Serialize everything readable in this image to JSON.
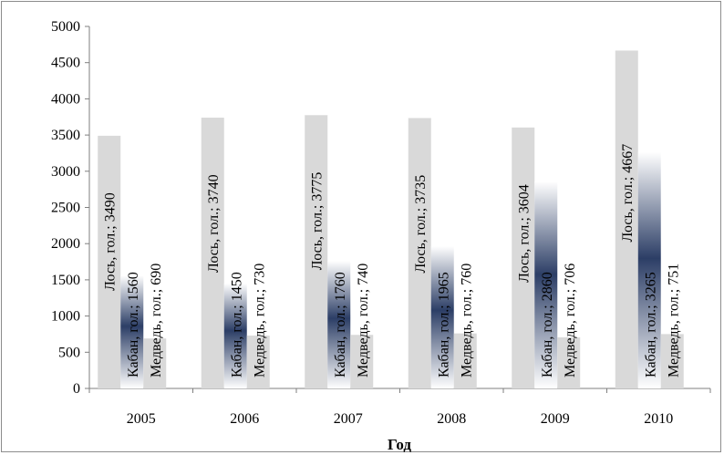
{
  "chart_data": {
    "type": "bar",
    "categories": [
      "2005",
      "2006",
      "2007",
      "2008",
      "2009",
      "2010"
    ],
    "series": [
      {
        "name": "Лось, гол.",
        "values": [
          3490,
          3740,
          3775,
          3735,
          3604,
          4667
        ],
        "labels": [
          "Лось, гол.; 3490",
          "Лось, гол.; 3740",
          "Лось, гол.; 3775",
          "Лось, гол.; 3735",
          "Лось, гол.; 3604",
          "Лось, гол.; 4667"
        ]
      },
      {
        "name": "Кабан, гол.",
        "values": [
          1560,
          1450,
          1760,
          1965,
          2860,
          3265
        ],
        "labels": [
          "Кабан, гол.; 1560",
          "Кабан, гол.; 1450",
          "Кабан, гол.; 1760",
          "Кабан, гол.; 1965",
          "Кабан, гол.; 2860",
          "Кабан, гол.; 3265"
        ]
      },
      {
        "name": "Медведь, гол.",
        "values": [
          690,
          730,
          740,
          760,
          706,
          751
        ],
        "labels": [
          "Медведь, гол.; 690",
          "Медведь, гол.; 730",
          "Медведь, гол.; 740",
          "Медведь, гол.; 760",
          "Медведь, гол.; 706",
          "Медведь, гол.; 751"
        ]
      }
    ],
    "xlabel": "Год",
    "ylabel": "",
    "ylim": [
      0,
      5000
    ],
    "yticks": [
      "0",
      "500",
      "1000",
      "1500",
      "2000",
      "2500",
      "3000",
      "3500",
      "4000",
      "4500",
      "5000"
    ],
    "grid": false,
    "legend": "none",
    "colors": {
      "moose": "#d9d9d9",
      "boar_light": "#ffffff",
      "boar_dark": "#2c3e66",
      "bear": "#d9d9d9",
      "axis": "#7f7f7f"
    }
  }
}
